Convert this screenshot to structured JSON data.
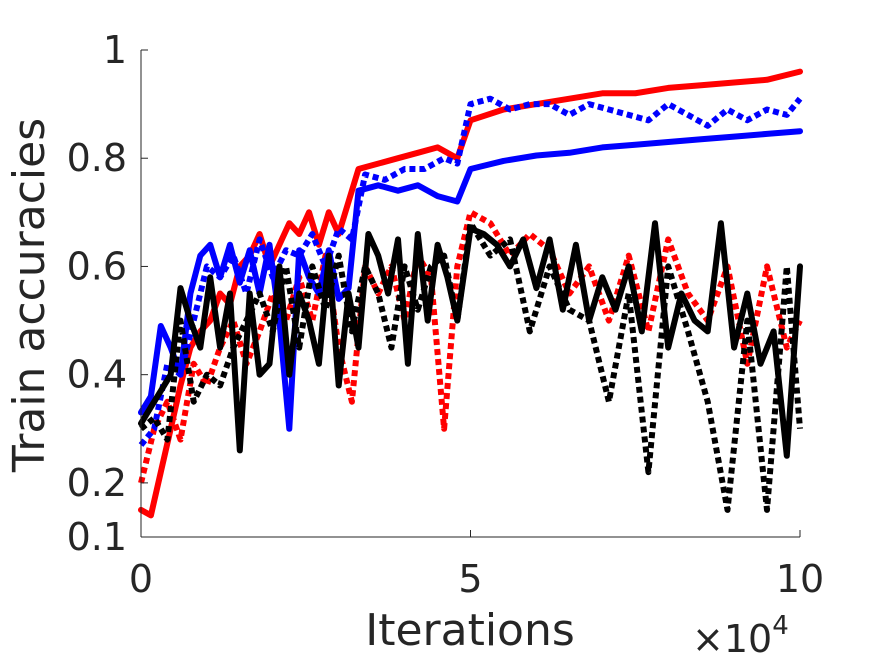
{
  "chart_data": {
    "type": "line",
    "title": "",
    "xlabel": "Iterations",
    "ylabel": "Train accuracies",
    "x_exponent_base": "10",
    "x_exponent_power": "4",
    "x_exponent_prefix": "×",
    "xlim": [
      0,
      10
    ],
    "ylim": [
      0.1,
      1
    ],
    "xticks": [
      0,
      5,
      10
    ],
    "xtick_labels": [
      "0",
      "5",
      "10"
    ],
    "yticks": [
      0.1,
      0.2,
      0.4,
      0.6,
      0.8,
      1
    ],
    "ytick_labels": [
      "0.1",
      "0.2",
      "0.4",
      "0.6",
      "0.8",
      "1"
    ],
    "grid": false,
    "legend": "none",
    "series": [
      {
        "color": "#ff0000",
        "style": "solid",
        "x": [
          0.0,
          0.15,
          0.3,
          0.45,
          0.6,
          0.75,
          0.9,
          1.05,
          1.2,
          1.35,
          1.5,
          1.65,
          1.8,
          1.95,
          2.1,
          2.25,
          2.4,
          2.55,
          2.7,
          2.85,
          3.0,
          3.15,
          3.3,
          3.6,
          3.9,
          4.2,
          4.5,
          4.8,
          5.0,
          5.5,
          6.0,
          6.5,
          7.0,
          7.5,
          8.0,
          8.5,
          9.0,
          9.5,
          10.0
        ],
        "y": [
          0.15,
          0.14,
          0.22,
          0.3,
          0.38,
          0.45,
          0.48,
          0.5,
          0.55,
          0.53,
          0.6,
          0.62,
          0.66,
          0.6,
          0.64,
          0.68,
          0.66,
          0.7,
          0.64,
          0.7,
          0.66,
          0.72,
          0.78,
          0.79,
          0.8,
          0.81,
          0.82,
          0.8,
          0.87,
          0.89,
          0.9,
          0.91,
          0.92,
          0.92,
          0.93,
          0.935,
          0.94,
          0.945,
          0.96
        ]
      },
      {
        "color": "#ff0000",
        "style": "dotted",
        "x": [
          0.0,
          0.2,
          0.4,
          0.6,
          0.8,
          1.0,
          1.2,
          1.4,
          1.6,
          1.8,
          2.0,
          2.2,
          2.4,
          2.6,
          2.8,
          3.0,
          3.2,
          3.4,
          3.6,
          3.8,
          4.0,
          4.2,
          4.4,
          4.6,
          4.8,
          5.0,
          5.3,
          5.6,
          5.9,
          6.2,
          6.5,
          6.8,
          7.1,
          7.4,
          7.7,
          8.0,
          8.3,
          8.6,
          8.9,
          9.2,
          9.5,
          9.8,
          10.0
        ],
        "y": [
          0.2,
          0.3,
          0.35,
          0.28,
          0.42,
          0.38,
          0.45,
          0.5,
          0.42,
          0.48,
          0.55,
          0.5,
          0.58,
          0.5,
          0.62,
          0.45,
          0.35,
          0.6,
          0.55,
          0.6,
          0.5,
          0.62,
          0.58,
          0.3,
          0.6,
          0.7,
          0.68,
          0.62,
          0.66,
          0.63,
          0.55,
          0.6,
          0.5,
          0.62,
          0.48,
          0.65,
          0.55,
          0.5,
          0.6,
          0.42,
          0.6,
          0.45,
          0.5
        ]
      },
      {
        "color": "#0000ff",
        "style": "solid",
        "x": [
          0.0,
          0.15,
          0.3,
          0.45,
          0.6,
          0.75,
          0.9,
          1.05,
          1.2,
          1.35,
          1.5,
          1.65,
          1.8,
          1.95,
          2.1,
          2.25,
          2.4,
          2.55,
          2.7,
          2.85,
          3.0,
          3.15,
          3.3,
          3.6,
          3.9,
          4.2,
          4.5,
          4.8,
          5.0,
          5.5,
          6.0,
          6.5,
          7.0,
          7.5,
          8.0,
          8.5,
          9.0,
          9.5,
          10.0
        ],
        "y": [
          0.33,
          0.36,
          0.49,
          0.45,
          0.4,
          0.55,
          0.62,
          0.64,
          0.58,
          0.64,
          0.57,
          0.63,
          0.55,
          0.64,
          0.5,
          0.3,
          0.63,
          0.58,
          0.55,
          0.63,
          0.54,
          0.56,
          0.74,
          0.75,
          0.74,
          0.75,
          0.73,
          0.72,
          0.78,
          0.795,
          0.805,
          0.81,
          0.82,
          0.825,
          0.83,
          0.835,
          0.84,
          0.845,
          0.85
        ]
      },
      {
        "color": "#0000ff",
        "style": "dotted",
        "x": [
          0.0,
          0.2,
          0.4,
          0.6,
          0.8,
          1.0,
          1.2,
          1.4,
          1.6,
          1.8,
          2.0,
          2.2,
          2.4,
          2.6,
          2.8,
          3.0,
          3.2,
          3.4,
          3.7,
          4.0,
          4.3,
          4.6,
          4.8,
          5.0,
          5.3,
          5.6,
          5.9,
          6.2,
          6.5,
          6.8,
          7.1,
          7.4,
          7.7,
          8.0,
          8.3,
          8.6,
          8.9,
          9.2,
          9.5,
          9.8,
          10.0
        ],
        "y": [
          0.27,
          0.3,
          0.42,
          0.4,
          0.5,
          0.6,
          0.58,
          0.62,
          0.55,
          0.65,
          0.58,
          0.63,
          0.62,
          0.66,
          0.6,
          0.67,
          0.65,
          0.77,
          0.76,
          0.78,
          0.78,
          0.8,
          0.79,
          0.9,
          0.91,
          0.89,
          0.9,
          0.9,
          0.88,
          0.9,
          0.89,
          0.88,
          0.87,
          0.9,
          0.88,
          0.86,
          0.89,
          0.87,
          0.89,
          0.88,
          0.91
        ]
      },
      {
        "color": "#000000",
        "style": "solid",
        "x": [
          0.0,
          0.15,
          0.3,
          0.45,
          0.6,
          0.75,
          0.9,
          1.05,
          1.2,
          1.35,
          1.5,
          1.65,
          1.8,
          1.95,
          2.1,
          2.25,
          2.4,
          2.55,
          2.7,
          2.85,
          3.0,
          3.15,
          3.3,
          3.45,
          3.6,
          3.75,
          3.9,
          4.05,
          4.2,
          4.35,
          4.5,
          4.65,
          4.8,
          5.0,
          5.2,
          5.4,
          5.6,
          5.8,
          6.0,
          6.2,
          6.4,
          6.6,
          6.8,
          7.0,
          7.2,
          7.4,
          7.6,
          7.8,
          8.0,
          8.2,
          8.4,
          8.6,
          8.8,
          9.0,
          9.2,
          9.4,
          9.6,
          9.8,
          10.0
        ],
        "y": [
          0.31,
          0.34,
          0.37,
          0.4,
          0.56,
          0.5,
          0.45,
          0.58,
          0.45,
          0.55,
          0.26,
          0.55,
          0.4,
          0.42,
          0.6,
          0.4,
          0.55,
          0.5,
          0.42,
          0.62,
          0.38,
          0.55,
          0.45,
          0.66,
          0.62,
          0.55,
          0.65,
          0.42,
          0.66,
          0.5,
          0.64,
          0.58,
          0.5,
          0.67,
          0.66,
          0.64,
          0.6,
          0.65,
          0.56,
          0.65,
          0.52,
          0.64,
          0.5,
          0.58,
          0.52,
          0.6,
          0.48,
          0.68,
          0.45,
          0.55,
          0.5,
          0.48,
          0.68,
          0.45,
          0.55,
          0.42,
          0.48,
          0.25,
          0.6
        ]
      },
      {
        "color": "#000000",
        "style": "dotted",
        "x": [
          0.0,
          0.2,
          0.4,
          0.6,
          0.8,
          1.0,
          1.2,
          1.4,
          1.6,
          1.8,
          2.0,
          2.2,
          2.4,
          2.6,
          2.8,
          3.0,
          3.2,
          3.4,
          3.6,
          3.8,
          4.0,
          4.2,
          4.4,
          4.6,
          4.8,
          5.0,
          5.3,
          5.6,
          5.9,
          6.2,
          6.5,
          6.8,
          7.1,
          7.4,
          7.7,
          8.0,
          8.3,
          8.6,
          8.9,
          9.2,
          9.5,
          9.8,
          10.0
        ],
        "y": [
          0.3,
          0.32,
          0.28,
          0.5,
          0.35,
          0.4,
          0.38,
          0.45,
          0.5,
          0.55,
          0.48,
          0.6,
          0.45,
          0.6,
          0.52,
          0.62,
          0.48,
          0.6,
          0.55,
          0.45,
          0.6,
          0.52,
          0.6,
          0.62,
          0.5,
          0.68,
          0.62,
          0.65,
          0.48,
          0.6,
          0.52,
          0.5,
          0.35,
          0.55,
          0.22,
          0.6,
          0.48,
          0.35,
          0.15,
          0.5,
          0.15,
          0.6,
          0.3
        ]
      }
    ]
  }
}
